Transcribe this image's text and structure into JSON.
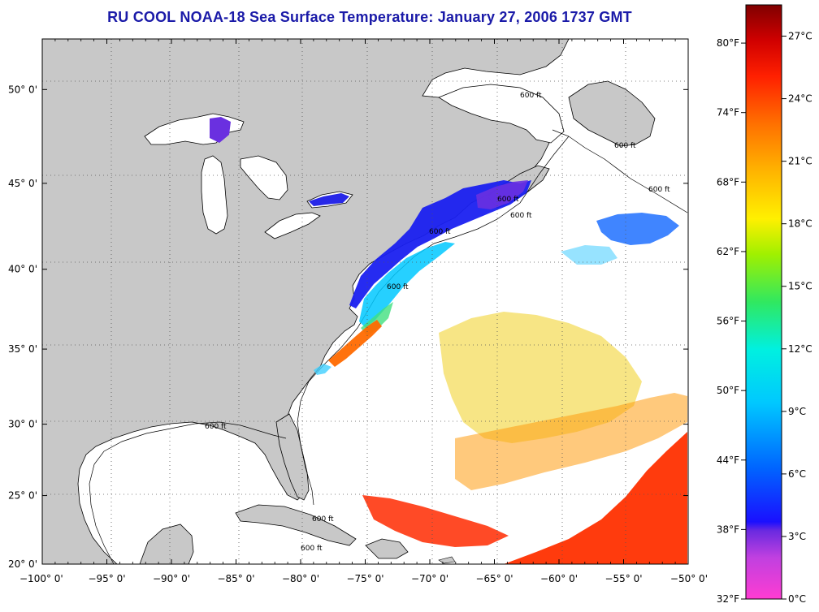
{
  "title": "RU COOL  NOAA-18  Sea Surface Temperature:  January 27, 2006 1737 GMT",
  "map": {
    "lon_range": [
      -100,
      -50
    ],
    "lat_range": [
      20,
      52.5
    ],
    "lon_ticks": [
      {
        "value": -100,
        "label": "−100° 0'"
      },
      {
        "value": -95,
        "label": "−95° 0'"
      },
      {
        "value": -90,
        "label": "−90° 0'"
      },
      {
        "value": -85,
        "label": "−85° 0'"
      },
      {
        "value": -80,
        "label": "−80° 0'"
      },
      {
        "value": -75,
        "label": "−75° 0'"
      },
      {
        "value": -70,
        "label": "−70° 0'"
      },
      {
        "value": -65,
        "label": "−65° 0'"
      },
      {
        "value": -60,
        "label": "−60° 0'"
      },
      {
        "value": -55,
        "label": "−55° 0'"
      },
      {
        "value": -50,
        "label": "−50° 0'"
      }
    ],
    "lat_ticks": [
      {
        "value": 20,
        "label": "20° 0'"
      },
      {
        "value": 25,
        "label": "25° 0'"
      },
      {
        "value": 30,
        "label": "30° 0'"
      },
      {
        "value": 35,
        "label": "35° 0'"
      },
      {
        "value": 40,
        "label": "40° 0'"
      },
      {
        "value": 45,
        "label": "45° 0'"
      },
      {
        "value": 50,
        "label": "50° 0'"
      }
    ],
    "grid": true,
    "land_color": "#c8c8c8",
    "ocean_color": "#ffffff",
    "contour_label": "600 ft"
  },
  "colorbar": {
    "celsius_range": [
      0,
      28.5
    ],
    "celsius_labels": [
      "27°C",
      "24°C",
      "21°C",
      "18°C",
      "15°C",
      "12°C",
      "9°C",
      "6°C",
      "3°C",
      "0°C"
    ],
    "celsius_values": [
      27,
      24,
      21,
      18,
      15,
      12,
      9,
      6,
      3,
      0
    ],
    "fahrenheit_labels": [
      "80°F",
      "74°F",
      "68°F",
      "62°F",
      "56°F",
      "50°F",
      "44°F",
      "38°F",
      "32°F"
    ],
    "fahrenheit_values": [
      80,
      74,
      68,
      62,
      56,
      50,
      44,
      38,
      32
    ],
    "colors": [
      "#ff3cd2",
      "#a040e8",
      "#6a2ae0",
      "#1414ff",
      "#0a64ff",
      "#00a8ff",
      "#00e6ff",
      "#00f0b0",
      "#38e800",
      "#c8f000",
      "#fff000",
      "#ffc800",
      "#ff9000",
      "#ff5000",
      "#ff1a00",
      "#d40000",
      "#8a0000"
    ]
  }
}
